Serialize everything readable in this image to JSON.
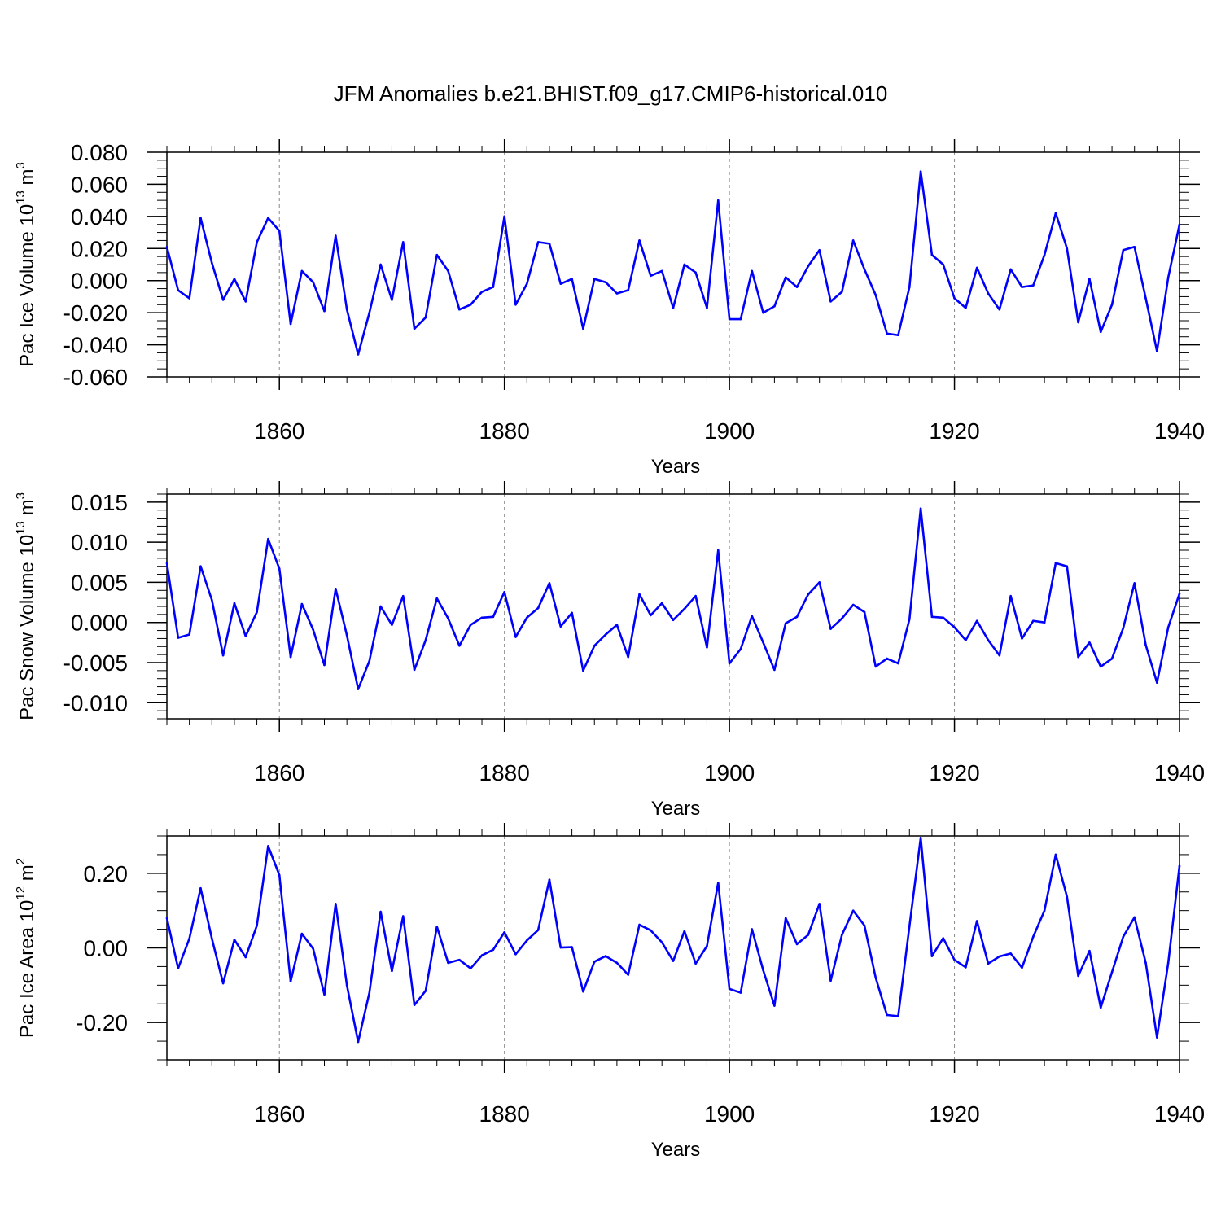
{
  "title": "JFM Anomalies b.e21.BHIST.f09_g17.CMIP6-historical.010",
  "chart_data": [
    {
      "type": "line",
      "ylabel_base": "Pac Ice Volume 10",
      "ylabel_exp": "13",
      "ylabel_unit": " m",
      "ylabel_unit_exp": "3",
      "xlabel": "Years",
      "xlim": [
        1850,
        1940
      ],
      "ylim": [
        -0.06,
        0.08
      ],
      "yticks": [
        -0.06,
        -0.04,
        -0.02,
        0.0,
        0.02,
        0.04,
        0.06,
        0.08
      ],
      "ytick_labels": [
        "-0.060",
        "-0.040",
        "-0.020",
        "0.000",
        "0.020",
        "0.040",
        "0.060",
        "0.080"
      ],
      "yminor_step": 0.005,
      "xticks": [
        1860,
        1880,
        1900,
        1920,
        1940
      ],
      "xtick_labels": [
        "1860",
        "1880",
        "1900",
        "1920",
        "1940"
      ],
      "series": [
        {
          "name": "Pac Ice Volume",
          "color": "#0000ff",
          "x_start": 1850,
          "values": [
            0.021,
            -0.006,
            -0.011,
            0.039,
            0.011,
            -0.012,
            0.001,
            -0.013,
            0.024,
            0.039,
            0.031,
            -0.027,
            0.006,
            -0.001,
            -0.019,
            0.028,
            -0.018,
            -0.046,
            -0.02,
            0.01,
            -0.012,
            0.024,
            -0.03,
            -0.023,
            0.016,
            0.006,
            -0.018,
            -0.015,
            -0.007,
            -0.004,
            0.04,
            -0.015,
            -0.002,
            0.024,
            0.023,
            -0.002,
            0.001,
            -0.03,
            0.001,
            -0.001,
            -0.008,
            -0.006,
            0.025,
            0.003,
            0.006,
            -0.017,
            0.01,
            0.005,
            -0.017,
            0.05,
            -0.024,
            -0.024,
            0.006,
            -0.02,
            -0.016,
            0.002,
            -0.004,
            0.009,
            0.019,
            -0.013,
            -0.007,
            0.025,
            0.007,
            -0.009,
            -0.033,
            -0.034,
            -0.004,
            0.068,
            0.016,
            0.01,
            -0.011,
            -0.017,
            0.008,
            -0.008,
            -0.018,
            0.007,
            -0.004,
            -0.003,
            0.016,
            0.042,
            0.02,
            -0.026,
            0.001,
            -0.032,
            -0.015,
            0.019,
            0.021,
            -0.011,
            -0.044,
            0.002,
            0.035
          ]
        }
      ]
    },
    {
      "type": "line",
      "ylabel_base": "Pac Snow Volume 10",
      "ylabel_exp": "13",
      "ylabel_unit": " m",
      "ylabel_unit_exp": "3",
      "xlabel": "Years",
      "xlim": [
        1850,
        1940
      ],
      "ylim": [
        -0.012,
        0.016
      ],
      "yticks": [
        -0.01,
        -0.005,
        0.0,
        0.005,
        0.01,
        0.015
      ],
      "ytick_labels": [
        "-0.010",
        "-0.005",
        "0.000",
        "0.005",
        "0.010",
        "0.015"
      ],
      "yminor_step": 0.001,
      "xticks": [
        1860,
        1880,
        1900,
        1920,
        1940
      ],
      "xtick_labels": [
        "1860",
        "1880",
        "1900",
        "1920",
        "1940"
      ],
      "series": [
        {
          "name": "Pac Snow Volume",
          "color": "#0000ff",
          "x_start": 1850,
          "values": [
            0.0074,
            -0.0019,
            -0.0015,
            0.007,
            0.0028,
            -0.0041,
            0.0024,
            -0.0017,
            0.0013,
            0.0104,
            0.0067,
            -0.0043,
            0.0023,
            -0.0009,
            -0.0053,
            0.0042,
            -0.0016,
            -0.0083,
            -0.0048,
            0.002,
            -0.0003,
            0.0033,
            -0.0059,
            -0.0022,
            0.003,
            0.0005,
            -0.0029,
            -0.0003,
            0.0006,
            0.0007,
            0.0038,
            -0.0018,
            0.0006,
            0.0018,
            0.0049,
            -0.0005,
            0.0012,
            -0.006,
            -0.0029,
            -0.0015,
            -0.0003,
            -0.0043,
            0.0035,
            0.0009,
            0.0024,
            0.0003,
            0.0017,
            0.0033,
            -0.0031,
            0.009,
            -0.0051,
            -0.0033,
            0.0008,
            -0.0025,
            -0.0059,
            -0.0001,
            0.0007,
            0.0035,
            0.005,
            -0.0008,
            0.0005,
            0.0022,
            0.0013,
            -0.0055,
            -0.0045,
            -0.0051,
            0.0004,
            0.0142,
            0.0007,
            0.0006,
            -0.0006,
            -0.0022,
            0.0002,
            -0.0022,
            -0.0041,
            0.0033,
            -0.002,
            0.0002,
            0.0,
            0.0074,
            0.007,
            -0.0043,
            -0.0025,
            -0.0055,
            -0.0045,
            -0.0007,
            0.0049,
            -0.0028,
            -0.0075,
            -0.0006,
            0.0036
          ]
        }
      ]
    },
    {
      "type": "line",
      "ylabel_base": "Pac Ice Area 10",
      "ylabel_exp": "12",
      "ylabel_unit": " m",
      "ylabel_unit_exp": "2",
      "xlabel": "Years",
      "xlim": [
        1850,
        1940
      ],
      "ylim": [
        -0.3,
        0.3
      ],
      "yticks": [
        -0.2,
        0.0,
        0.2
      ],
      "ytick_labels": [
        "-0.20",
        "0.00",
        "0.20"
      ],
      "yminor_step": 0.05,
      "xticks": [
        1860,
        1880,
        1900,
        1920,
        1940
      ],
      "xtick_labels": [
        "1860",
        "1880",
        "1900",
        "1920",
        "1940"
      ],
      "series": [
        {
          "name": "Pac Ice Area",
          "color": "#0000ff",
          "x_start": 1850,
          "values": [
            0.08,
            -0.055,
            0.025,
            0.16,
            0.025,
            -0.095,
            0.022,
            -0.025,
            0.06,
            0.273,
            0.195,
            -0.09,
            0.038,
            -0.002,
            -0.125,
            0.118,
            -0.1,
            -0.252,
            -0.12,
            0.097,
            -0.062,
            0.085,
            -0.153,
            -0.115,
            0.057,
            -0.04,
            -0.032,
            -0.055,
            -0.02,
            -0.005,
            0.042,
            -0.017,
            0.02,
            0.048,
            0.183,
            0.001,
            0.002,
            -0.117,
            -0.037,
            -0.022,
            -0.04,
            -0.072,
            0.062,
            0.047,
            0.015,
            -0.035,
            0.045,
            -0.042,
            0.005,
            0.175,
            -0.11,
            -0.12,
            0.05,
            -0.06,
            -0.155,
            0.08,
            0.01,
            0.035,
            0.118,
            -0.088,
            0.035,
            0.1,
            0.06,
            -0.08,
            -0.18,
            -0.183,
            0.058,
            0.295,
            -0.022,
            0.026,
            -0.032,
            -0.052,
            0.072,
            -0.042,
            -0.023,
            -0.015,
            -0.053,
            0.03,
            0.1,
            0.25,
            0.137,
            -0.075,
            -0.008,
            -0.16,
            -0.065,
            0.03,
            0.082,
            -0.04,
            -0.24,
            -0.04,
            0.22
          ]
        }
      ]
    }
  ]
}
